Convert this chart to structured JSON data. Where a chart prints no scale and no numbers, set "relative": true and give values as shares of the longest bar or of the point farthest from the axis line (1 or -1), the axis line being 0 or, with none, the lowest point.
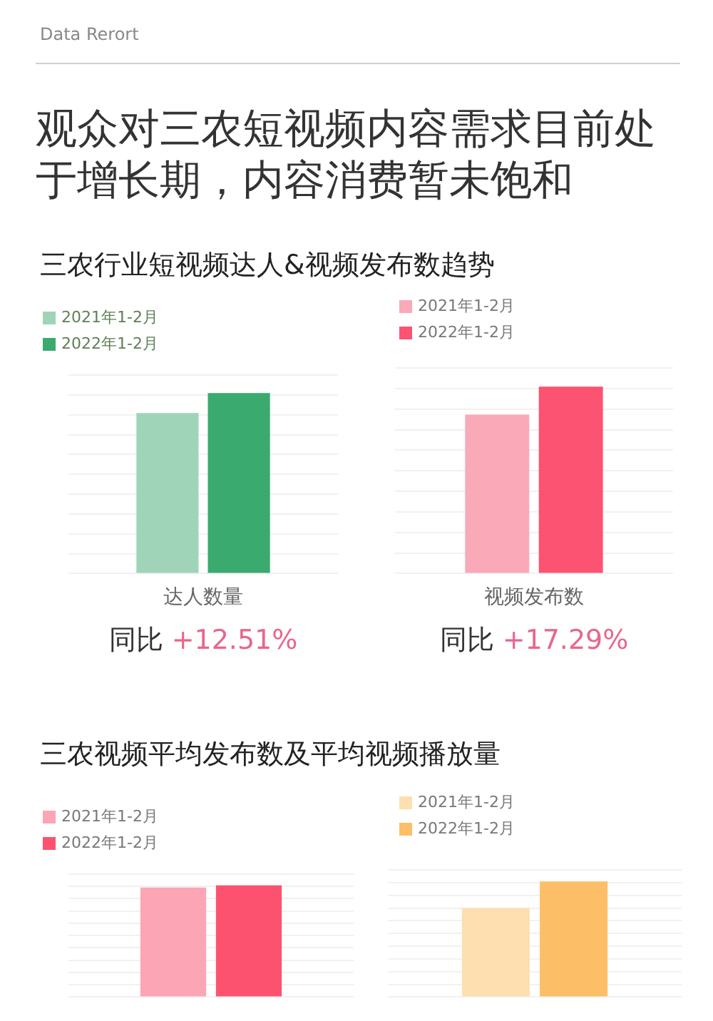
{
  "chart_data": [
    {
      "type": "bar",
      "title": "观众对三农短视频内容需求目前处于增长期，内容消费暂未饱和",
      "subtitle": "三农行业短视频达人&视频发布数趋势",
      "annotations": [
        "Data Rerort",
        "同比 +12.51%"
      ],
      "categories": [
        "达人数量"
      ],
      "series": [
        {
          "name": "2021年1-2月",
          "color": "#9fd4b8",
          "values": [
            0.89
          ]
        },
        {
          "name": "2022年1-2月",
          "color": "#3aaa6e",
          "values": [
            1
          ]
        }
      ],
      "relative": true,
      "grid": "y",
      "legend": "top left",
      "tick_labels": "x"
    },
    {
      "type": "bar",
      "annotations": [
        "同比 +17.29%"
      ],
      "categories": [
        "视频发布数"
      ],
      "series": [
        {
          "name": "2021年1-2月",
          "color": "#f9a9b8",
          "values": [
            0.85
          ]
        },
        {
          "name": "2022年1-2月",
          "color": "#fb5371",
          "values": [
            1
          ]
        }
      ],
      "relative": true,
      "grid": "y",
      "legend": "top left",
      "tick_labels": "x"
    },
    {
      "type": "bar",
      "title": "三农视频平均发布数及平均视频播放量",
      "categories": [
        null
      ],
      "series": [
        {
          "name": "2021年1-2月",
          "color": "#fba5b5",
          "values": [
            0.98
          ]
        },
        {
          "name": "2022年1-2月",
          "color": "#fc5270",
          "values": [
            1
          ]
        }
      ],
      "relative": true,
      "grid": "y",
      "legend": "top left"
    },
    {
      "type": "bar",
      "categories": [
        null
      ],
      "series": [
        {
          "name": "2021年1-2月",
          "color": "#fddfb0",
          "values": [
            0.77
          ]
        },
        {
          "name": "2022年1-2月",
          "color": "#fcbf67",
          "values": [
            1
          ]
        }
      ],
      "relative": true,
      "grid": "y",
      "legend": "top left"
    }
  ]
}
